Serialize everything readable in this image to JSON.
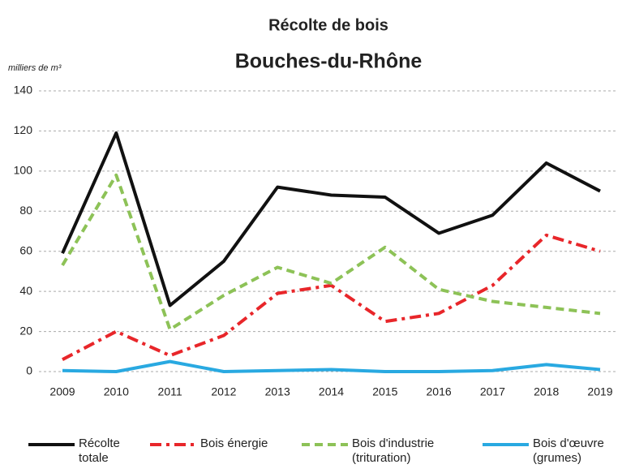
{
  "chart_data": {
    "type": "line",
    "title": "Récolte de bois",
    "subtitle": "Bouches-du-Rhône",
    "y_label": "milliers de m³",
    "categories": [
      "2009",
      "2010",
      "2011",
      "2012",
      "2013",
      "2014",
      "2015",
      "2016",
      "2017",
      "2018",
      "2019"
    ],
    "series": [
      {
        "name": "Récolte totale",
        "color": "#111111",
        "dash": "solid",
        "values": [
          59,
          119,
          33,
          55,
          92,
          88,
          87,
          69,
          78,
          104,
          90
        ]
      },
      {
        "name": "Bois énergie",
        "color": "#e8262a",
        "dash": "dashdot",
        "values": [
          6,
          20,
          8,
          18,
          39,
          43,
          25,
          29,
          43,
          68,
          60
        ]
      },
      {
        "name": "Bois d'industrie (trituration)",
        "color": "#8dc257",
        "dash": "dashed",
        "values": [
          53,
          98,
          21,
          38,
          52,
          44,
          62,
          41,
          35,
          32,
          29
        ]
      },
      {
        "name": "Bois d'œuvre (grumes)",
        "color": "#29a9e1",
        "dash": "solid",
        "values": [
          0.5,
          0,
          5,
          0,
          0.5,
          1,
          0,
          0,
          0.5,
          3.5,
          1
        ]
      }
    ],
    "ylim": [
      0,
      140
    ],
    "yticks": [
      0,
      20,
      40,
      60,
      80,
      100,
      120,
      140
    ],
    "grid": true
  }
}
